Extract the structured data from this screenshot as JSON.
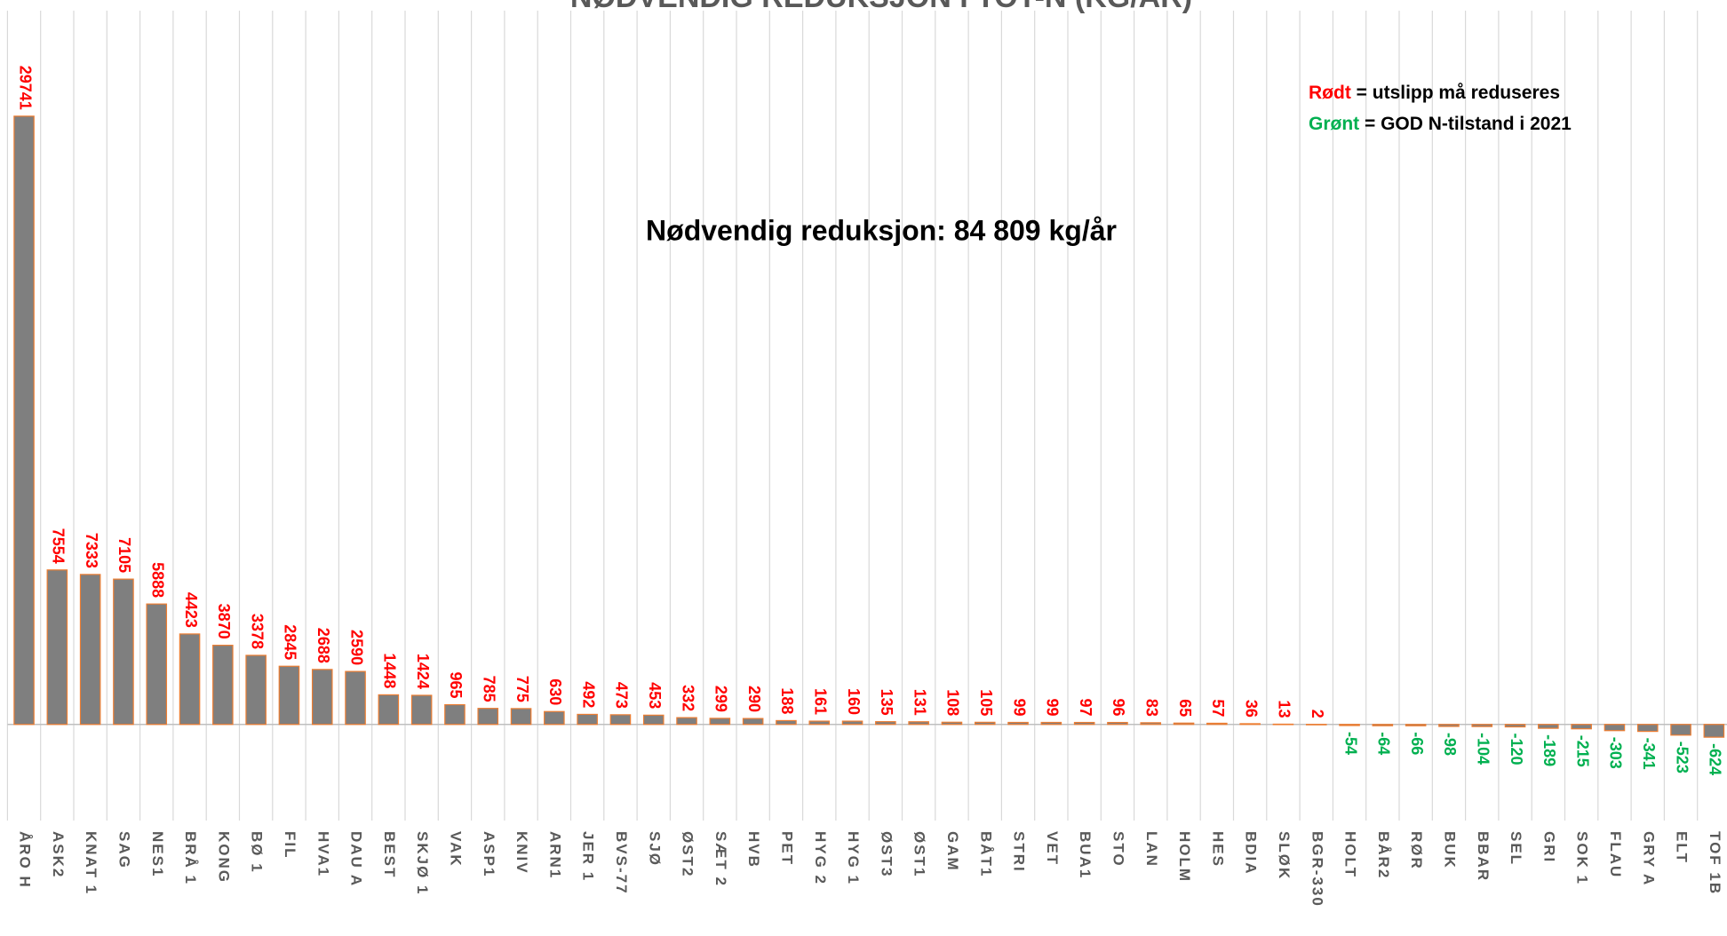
{
  "chart_data": {
    "type": "bar",
    "title": "NØDVENDIG REDUKSJON I TOT-N (KG/ÅR)",
    "annotation": "Nødvendig reduksjon: 84 809 kg/år",
    "legend": [
      {
        "key": "Rødt",
        "text": " = utslipp må reduseres",
        "color": "#ff0000"
      },
      {
        "key": "Grønt",
        "text": " = GOD N-tilstand i 2021",
        "color": "#00b050"
      }
    ],
    "categories": [
      "ÅRO H",
      "ASK2",
      "KNAT 1",
      "SAG",
      "NES1",
      "BRÅ 1",
      "KONG",
      "BØ 1",
      "FIL",
      "HVA1",
      "DAU A",
      "BEST",
      "SKJØ 1",
      "VAK",
      "ASP1",
      "KNIV",
      "ARN1",
      "JER 1",
      "BVS-77",
      "SJØ",
      "ØST2",
      "SÆT 2",
      "HVB",
      "PET",
      "HYG 2",
      "HYG 1",
      "ØST3",
      "ØST1",
      "GAM",
      "BÅT1",
      "STRI",
      "VET",
      "BUA1",
      "STO",
      "LAN",
      "HOLM",
      "HES",
      "BDIA",
      "SLØK",
      "BGR-330",
      "HOLT",
      "BÅR2",
      "RØR",
      "BUK",
      "BBAR",
      "SEL",
      "GRI",
      "SOK 1",
      "FLAU",
      "GRY A",
      "ELT",
      "TOF 1B"
    ],
    "values": [
      29741,
      7554,
      7333,
      7105,
      5888,
      4423,
      3870,
      3378,
      2845,
      2688,
      2590,
      1448,
      1424,
      965,
      785,
      775,
      630,
      492,
      473,
      453,
      332,
      299,
      290,
      188,
      161,
      160,
      135,
      131,
      108,
      105,
      99,
      99,
      97,
      96,
      83,
      65,
      57,
      36,
      13,
      2,
      -54,
      -64,
      -66,
      -98,
      -104,
      -120,
      -189,
      -215,
      -303,
      -341,
      -523,
      -624
    ],
    "color": "#7f7f7f",
    "edge_color": "#ed7d31",
    "positive_label_color": "#ff0000",
    "negative_label_color": "#00b050",
    "ylim": [
      -4700,
      34900
    ],
    "grid": true
  }
}
